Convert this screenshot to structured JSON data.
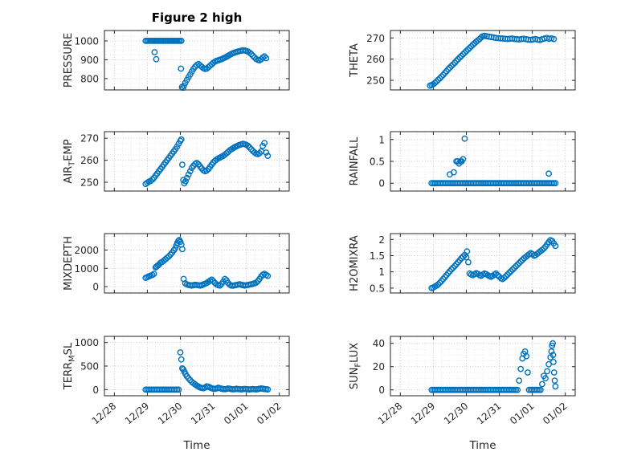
{
  "title": "Figure 2 high",
  "accent_color": "#0072BD",
  "x_axis": {
    "label": "Time",
    "lim": [
      -0.3,
      5.3
    ],
    "tick_values": [
      0,
      1,
      2,
      3,
      4,
      5
    ],
    "tick_labels": [
      "12/28",
      "12/29",
      "12/30",
      "12/31",
      "01/01",
      "01/02"
    ]
  },
  "chart_data": [
    {
      "name": "pressure",
      "type": "scatter",
      "ylabel": "PRESSURE",
      "ylabel_parts": [
        [
          "PRESSURE",
          false
        ]
      ],
      "yticks": [
        800,
        900,
        1000
      ],
      "yminor": 25,
      "ylim": [
        740,
        1055
      ],
      "runs": [
        {
          "x0": 0.95,
          "x1": 2.03,
          "step": 0.045,
          "y": 1000
        }
      ],
      "x": [
        1.22,
        1.27,
        2.02,
        2.05,
        2.08,
        2.11,
        2.15,
        2.2,
        2.25,
        2.3,
        2.35,
        2.4,
        2.45,
        2.5,
        2.55,
        2.6,
        2.65,
        2.7,
        2.75,
        2.8,
        2.85,
        2.9,
        2.95,
        3.0,
        3.05,
        3.1,
        3.15,
        3.2,
        3.25,
        3.3,
        3.35,
        3.4,
        3.45,
        3.5,
        3.55,
        3.6,
        3.65,
        3.7,
        3.75,
        3.8,
        3.85,
        3.9,
        3.95,
        4.0,
        4.05,
        4.1,
        4.15,
        4.2,
        4.25,
        4.3,
        4.35,
        4.4,
        4.45,
        4.5,
        4.55,
        4.6
      ],
      "y": [
        940,
        903,
        853,
        755,
        748,
        762,
        778,
        793,
        808,
        822,
        838,
        852,
        863,
        872,
        877,
        870,
        862,
        855,
        851,
        853,
        860,
        868,
        876,
        884,
        890,
        894,
        897,
        900,
        903,
        907,
        911,
        916,
        921,
        926,
        931,
        935,
        938,
        941,
        944,
        946,
        948,
        950,
        949,
        947,
        943,
        938,
        930,
        921,
        912,
        904,
        899,
        897,
        902,
        912,
        918,
        908
      ]
    },
    {
      "name": "theta",
      "type": "scatter",
      "ylabel": "THETA",
      "ylabel_parts": [
        [
          "THETA",
          false
        ]
      ],
      "yticks": [
        250,
        260,
        270
      ],
      "yminor": 2.5,
      "ylim": [
        245.5,
        273.5
      ],
      "runs": [],
      "x": [
        0.9,
        0.95,
        1.0,
        1.05,
        1.1,
        1.15,
        1.2,
        1.25,
        1.3,
        1.35,
        1.4,
        1.45,
        1.5,
        1.55,
        1.6,
        1.65,
        1.7,
        1.75,
        1.8,
        1.85,
        1.9,
        1.95,
        2.0,
        2.05,
        2.1,
        2.15,
        2.2,
        2.25,
        2.3,
        2.35,
        2.4,
        2.45,
        2.5,
        2.55,
        2.62,
        2.69,
        2.76,
        2.83,
        2.9,
        2.97,
        3.04,
        3.11,
        3.18,
        3.25,
        3.32,
        3.39,
        3.46,
        3.53,
        3.6,
        3.67,
        3.74,
        3.81,
        3.88,
        3.95,
        4.02,
        4.09,
        4.16,
        4.23,
        4.3,
        4.37,
        4.44,
        4.51,
        4.58,
        4.65
      ],
      "y": [
        247.5,
        247.8,
        248.2,
        248.8,
        249.5,
        250.3,
        251.0,
        251.8,
        252.6,
        253.5,
        254.3,
        255.2,
        256.0,
        256.8,
        257.5,
        258.3,
        259.2,
        260.0,
        260.8,
        261.5,
        262.3,
        263.0,
        263.8,
        264.5,
        265.3,
        266.0,
        266.8,
        267.5,
        268.2,
        268.8,
        269.5,
        270.2,
        270.8,
        271.0,
        270.8,
        270.6,
        270.4,
        270.2,
        270.0,
        269.9,
        269.8,
        269.7,
        269.6,
        269.5,
        269.6,
        269.7,
        269.5,
        269.4,
        269.3,
        269.5,
        269.6,
        269.4,
        269.2,
        269.1,
        269.3,
        269.5,
        269.2,
        269.0,
        269.4,
        269.7,
        270.0,
        269.6,
        269.8,
        269.5
      ]
    },
    {
      "name": "air_temp",
      "type": "scatter",
      "ylabel": "AIR_TEMP",
      "ylabel_parts": [
        [
          "AIR",
          false
        ],
        [
          "T",
          true
        ],
        [
          "EMP",
          false
        ]
      ],
      "yticks": [
        250,
        260,
        270
      ],
      "yminor": 2.5,
      "ylim": [
        246,
        273
      ],
      "runs": [],
      "x": [
        0.95,
        1.0,
        1.05,
        1.1,
        1.15,
        1.2,
        1.25,
        1.3,
        1.35,
        1.4,
        1.45,
        1.5,
        1.55,
        1.6,
        1.65,
        1.7,
        1.75,
        1.8,
        1.85,
        1.9,
        1.95,
        2.0,
        2.03,
        2.06,
        2.09,
        2.12,
        2.16,
        2.2,
        2.25,
        2.3,
        2.35,
        2.4,
        2.45,
        2.5,
        2.55,
        2.6,
        2.65,
        2.7,
        2.75,
        2.8,
        2.85,
        2.9,
        2.95,
        3.0,
        3.05,
        3.1,
        3.15,
        3.2,
        3.25,
        3.3,
        3.35,
        3.4,
        3.45,
        3.5,
        3.55,
        3.6,
        3.65,
        3.7,
        3.75,
        3.8,
        3.85,
        3.9,
        3.95,
        4.0,
        4.05,
        4.1,
        4.15,
        4.2,
        4.25,
        4.3,
        4.35,
        4.4,
        4.45,
        4.5,
        4.55,
        4.6,
        4.65
      ],
      "y": [
        249.2,
        249.8,
        250.3,
        250.6,
        251.2,
        252.0,
        253.0,
        254.0,
        255.0,
        256.0,
        257.0,
        258.0,
        259.0,
        260.0,
        261.0,
        262.0,
        263.0,
        264.0,
        265.0,
        266.2,
        267.5,
        268.8,
        269.5,
        258.0,
        251.0,
        249.5,
        250.5,
        252.0,
        253.5,
        255.0,
        256.5,
        257.5,
        258.3,
        258.8,
        258.2,
        257.2,
        256.2,
        255.4,
        255.0,
        255.3,
        256.0,
        257.0,
        258.0,
        259.0,
        259.8,
        260.3,
        260.8,
        261.2,
        261.6,
        262.0,
        262.5,
        263.2,
        263.8,
        264.5,
        265.0,
        265.5,
        266.0,
        266.3,
        266.7,
        267.0,
        267.2,
        267.5,
        267.3,
        267.0,
        266.5,
        265.8,
        265.0,
        264.2,
        263.5,
        263.0,
        262.8,
        263.2,
        264.0,
        266.5,
        267.8,
        263.5,
        262.0
      ]
    },
    {
      "name": "rainfall",
      "type": "scatter",
      "ylabel": "RAINFALL",
      "ylabel_parts": [
        [
          "RAINFALL",
          false
        ]
      ],
      "yticks": [
        0,
        0.5,
        1
      ],
      "yminor": 0.125,
      "ylim": [
        -0.18,
        1.18
      ],
      "runs": [
        {
          "x0": 0.95,
          "x1": 4.7,
          "step": 0.05,
          "y": 0
        }
      ],
      "x": [
        1.5,
        1.62,
        1.7,
        1.74,
        1.78,
        1.82,
        1.86,
        1.9,
        1.95,
        4.5
      ],
      "y": [
        0.2,
        0.25,
        0.5,
        0.5,
        0.45,
        0.5,
        0.5,
        0.55,
        1.02,
        0.22
      ]
    },
    {
      "name": "mixdepth",
      "type": "scatter",
      "ylabel": "MIXDEPTH",
      "ylabel_parts": [
        [
          "MIXDEPTH",
          false
        ]
      ],
      "yticks": [
        0,
        1000,
        2000
      ],
      "yminor": 250,
      "ylim": [
        -350,
        2900
      ],
      "runs": [],
      "x": [
        0.95,
        1.0,
        1.05,
        1.1,
        1.15,
        1.2,
        1.25,
        1.28,
        1.32,
        1.35,
        1.4,
        1.45,
        1.5,
        1.55,
        1.6,
        1.65,
        1.7,
        1.75,
        1.8,
        1.85,
        1.88,
        1.91,
        1.94,
        1.97,
        2.0,
        2.03,
        2.06,
        2.1,
        2.15,
        2.2,
        2.25,
        2.3,
        2.35,
        2.4,
        2.45,
        2.5,
        2.55,
        2.6,
        2.65,
        2.7,
        2.75,
        2.8,
        2.85,
        2.9,
        2.95,
        3.0,
        3.05,
        3.1,
        3.15,
        3.2,
        3.25,
        3.3,
        3.35,
        3.4,
        3.45,
        3.5,
        3.55,
        3.6,
        3.65,
        3.7,
        3.75,
        3.8,
        3.85,
        3.9,
        3.95,
        4.0,
        4.05,
        4.1,
        4.15,
        4.2,
        4.25,
        4.3,
        4.35,
        4.4,
        4.45,
        4.5,
        4.55,
        4.6,
        4.65
      ],
      "y": [
        480,
        520,
        560,
        600,
        640,
        700,
        1050,
        1100,
        1150,
        1200,
        1300,
        1350,
        1420,
        1500,
        1580,
        1650,
        1750,
        1850,
        1980,
        2100,
        2250,
        2400,
        2500,
        2550,
        2450,
        2300,
        2050,
        420,
        180,
        120,
        90,
        70,
        60,
        80,
        100,
        90,
        70,
        60,
        80,
        120,
        160,
        200,
        260,
        320,
        380,
        300,
        200,
        120,
        80,
        60,
        150,
        280,
        420,
        350,
        200,
        100,
        60,
        50,
        70,
        90,
        110,
        130,
        100,
        80,
        60,
        70,
        90,
        110,
        130,
        150,
        180,
        220,
        300,
        420,
        550,
        650,
        700,
        640,
        580
      ]
    },
    {
      "name": "h2omixra",
      "type": "scatter",
      "ylabel": "H2OMIXRA",
      "ylabel_parts": [
        [
          "H2OMIXRA",
          false
        ]
      ],
      "yticks": [
        0.5,
        1,
        1.5,
        2
      ],
      "yminor": 0.125,
      "ylim": [
        0.35,
        2.18
      ],
      "runs": [],
      "x": [
        0.95,
        1.0,
        1.05,
        1.1,
        1.15,
        1.2,
        1.25,
        1.3,
        1.35,
        1.4,
        1.45,
        1.5,
        1.55,
        1.6,
        1.65,
        1.7,
        1.75,
        1.8,
        1.85,
        1.9,
        1.95,
        2.0,
        2.02,
        2.06,
        2.1,
        2.15,
        2.2,
        2.25,
        2.3,
        2.35,
        2.4,
        2.45,
        2.5,
        2.55,
        2.6,
        2.65,
        2.7,
        2.75,
        2.8,
        2.85,
        2.9,
        2.95,
        3.0,
        3.05,
        3.1,
        3.15,
        3.2,
        3.25,
        3.3,
        3.35,
        3.4,
        3.45,
        3.5,
        3.55,
        3.6,
        3.65,
        3.7,
        3.75,
        3.8,
        3.85,
        3.9,
        3.95,
        4.0,
        4.05,
        4.1,
        4.15,
        4.2,
        4.25,
        4.3,
        4.35,
        4.4,
        4.45,
        4.5,
        4.55,
        4.6,
        4.65,
        4.7
      ],
      "y": [
        0.5,
        0.52,
        0.55,
        0.58,
        0.62,
        0.67,
        0.72,
        0.78,
        0.84,
        0.9,
        0.96,
        1.02,
        1.08,
        1.13,
        1.18,
        1.24,
        1.3,
        1.36,
        1.42,
        1.47,
        1.52,
        1.45,
        1.63,
        1.3,
        0.95,
        0.92,
        0.9,
        0.93,
        0.96,
        0.94,
        0.9,
        0.88,
        0.92,
        0.95,
        0.93,
        0.9,
        0.87,
        0.85,
        0.88,
        0.92,
        0.95,
        0.9,
        0.85,
        0.8,
        0.78,
        0.82,
        0.87,
        0.92,
        0.97,
        1.02,
        1.07,
        1.12,
        1.17,
        1.22,
        1.27,
        1.32,
        1.37,
        1.42,
        1.46,
        1.5,
        1.54,
        1.58,
        1.55,
        1.5,
        1.52,
        1.56,
        1.6,
        1.64,
        1.68,
        1.72,
        1.78,
        1.85,
        1.92,
        1.98,
        1.95,
        1.88,
        1.8
      ]
    },
    {
      "name": "terr_msl",
      "type": "scatter",
      "ylabel": "TERR_MSL",
      "ylabel_parts": [
        [
          "TERR",
          false
        ],
        [
          "M",
          true
        ],
        [
          "SL",
          false
        ]
      ],
      "yticks": [
        0,
        500,
        1000
      ],
      "yminor": 125,
      "ylim": [
        -130,
        1130
      ],
      "runs": [
        {
          "x0": 0.95,
          "x1": 1.95,
          "step": 0.05,
          "y": 0
        }
      ],
      "x": [
        2.0,
        2.03,
        2.06,
        2.09,
        2.12,
        2.16,
        2.2,
        2.25,
        2.3,
        2.35,
        2.4,
        2.45,
        2.5,
        2.55,
        2.6,
        2.65,
        2.7,
        2.75,
        2.8,
        2.85,
        2.9,
        2.95,
        3.0,
        3.05,
        3.1,
        3.15,
        3.2,
        3.25,
        3.3,
        3.35,
        3.4,
        3.45,
        3.5,
        3.55,
        3.6,
        3.65,
        3.7,
        3.75,
        3.8,
        3.85,
        3.9,
        3.95,
        4.0,
        4.05,
        4.1,
        4.15,
        4.2,
        4.25,
        4.3,
        4.35,
        4.4,
        4.45,
        4.5,
        4.55,
        4.6,
        4.65
      ],
      "y": [
        790,
        640,
        450,
        430,
        380,
        330,
        280,
        240,
        200,
        165,
        135,
        110,
        85,
        65,
        45,
        35,
        30,
        45,
        70,
        60,
        45,
        30,
        20,
        15,
        25,
        40,
        30,
        20,
        12,
        8,
        15,
        25,
        18,
        10,
        6,
        10,
        18,
        12,
        8,
        5,
        10,
        15,
        10,
        6,
        4,
        8,
        12,
        8,
        5,
        10,
        18,
        25,
        20,
        12,
        8,
        5
      ]
    },
    {
      "name": "sun_flux",
      "type": "scatter",
      "ylabel": "SUN_FLUX",
      "ylabel_parts": [
        [
          "SUN",
          false
        ],
        [
          "F",
          true
        ],
        [
          "LUX",
          false
        ]
      ],
      "yticks": [
        0,
        20,
        40
      ],
      "yminor": 5,
      "ylim": [
        -5,
        46
      ],
      "runs": [
        {
          "x0": 0.95,
          "x1": 3.55,
          "step": 0.05,
          "y": 0
        },
        {
          "x0": 3.9,
          "x1": 4.25,
          "step": 0.05,
          "y": 0
        }
      ],
      "x": [
        3.6,
        3.65,
        3.7,
        3.74,
        3.78,
        3.82,
        3.86,
        4.3,
        4.35,
        4.4,
        4.45,
        4.5,
        4.55,
        4.58,
        4.6,
        4.62,
        4.63,
        4.64,
        4.66,
        4.68,
        4.7
      ],
      "y": [
        8,
        18,
        27,
        31,
        33,
        29,
        15,
        5,
        12,
        10,
        16,
        22,
        28,
        33,
        38,
        40,
        30,
        24,
        15,
        8,
        3
      ]
    }
  ]
}
